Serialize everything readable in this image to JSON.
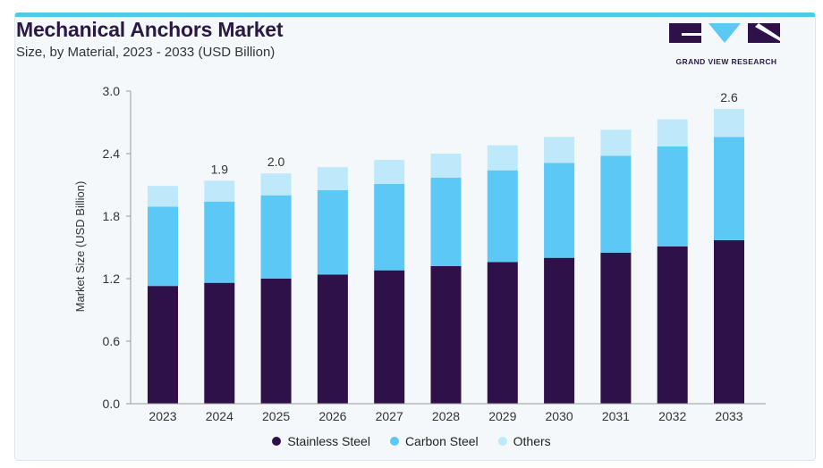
{
  "chart_data": {
    "type": "bar",
    "stacked": true,
    "title": "Mechanical Anchors Market",
    "subtitle": "Size, by Material, 2023 - 2033 (USD Billion)",
    "ylabel": "Market Size (USD Billion)",
    "xlabel": "",
    "ylim": [
      0,
      3.0
    ],
    "yticks": [
      "0.0",
      "0.6",
      "1.2",
      "1.8",
      "2.4",
      "3.0"
    ],
    "categories": [
      "2023",
      "2024",
      "2025",
      "2026",
      "2027",
      "2028",
      "2029",
      "2030",
      "2031",
      "2032",
      "2033"
    ],
    "series": [
      {
        "name": "Stainless Steel",
        "color": "#2e1149",
        "values": [
          1.13,
          1.16,
          1.2,
          1.24,
          1.28,
          1.32,
          1.36,
          1.4,
          1.45,
          1.51,
          1.57
        ]
      },
      {
        "name": "Carbon Steel",
        "color": "#5bc8f5",
        "values": [
          0.76,
          0.78,
          0.8,
          0.81,
          0.83,
          0.85,
          0.88,
          0.91,
          0.93,
          0.96,
          0.99
        ]
      },
      {
        "name": "Others",
        "color": "#bde9fb",
        "values": [
          0.2,
          0.2,
          0.21,
          0.22,
          0.23,
          0.23,
          0.24,
          0.25,
          0.25,
          0.26,
          0.27
        ]
      }
    ],
    "data_labels": {
      "2024": "1.9",
      "2025": "2.0",
      "2033": "2.6"
    },
    "grid": false,
    "legend_position": "bottom"
  },
  "brand": {
    "name": "GRAND VIEW RESEARCH",
    "colors": {
      "dark": "#2e1149",
      "light": "#5bc8f5"
    }
  }
}
